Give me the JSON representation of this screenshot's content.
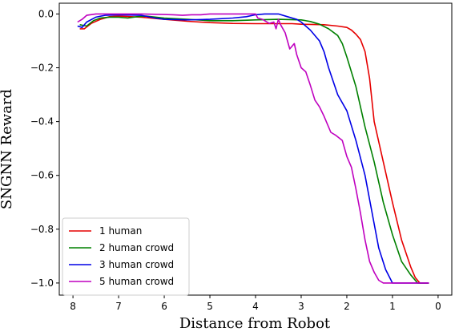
{
  "chart_data": {
    "type": "line",
    "title": "",
    "xlabel": "Distance from Robot",
    "ylabel": "SNGNN Reward",
    "xlim": [
      8.3,
      -0.3
    ],
    "ylim": [
      -1.045,
      0.04
    ],
    "x_inverted": true,
    "x_ticks": [
      8,
      7,
      6,
      5,
      4,
      3,
      2,
      1,
      0
    ],
    "y_ticks": [
      0.0,
      -0.2,
      -0.4,
      -0.6,
      -0.8,
      -1.0
    ],
    "x_tick_labels": [
      "8",
      "7",
      "6",
      "5",
      "4",
      "3",
      "2",
      "1",
      "0"
    ],
    "y_tick_labels": [
      "0.0",
      "−0.2",
      "−0.4",
      "−0.6",
      "−0.8",
      "−1.0"
    ],
    "grid": false,
    "legend_position": "lower-left",
    "series": [
      {
        "name": "1 human",
        "color": "#e60000",
        "points": [
          [
            7.85,
            -0.055
          ],
          [
            7.75,
            -0.055
          ],
          [
            7.6,
            -0.035
          ],
          [
            7.4,
            -0.02
          ],
          [
            7.2,
            -0.01
          ],
          [
            7.0,
            -0.008
          ],
          [
            6.5,
            -0.012
          ],
          [
            6.0,
            -0.02
          ],
          [
            5.5,
            -0.027
          ],
          [
            5.0,
            -0.032
          ],
          [
            4.5,
            -0.035
          ],
          [
            4.0,
            -0.036
          ],
          [
            3.5,
            -0.036
          ],
          [
            3.2,
            -0.036
          ],
          [
            3.0,
            -0.038
          ],
          [
            2.5,
            -0.04
          ],
          [
            2.2,
            -0.045
          ],
          [
            2.0,
            -0.05
          ],
          [
            1.9,
            -0.06
          ],
          [
            1.8,
            -0.075
          ],
          [
            1.7,
            -0.095
          ],
          [
            1.6,
            -0.14
          ],
          [
            1.5,
            -0.24
          ],
          [
            1.4,
            -0.4
          ],
          [
            1.2,
            -0.55
          ],
          [
            1.0,
            -0.7
          ],
          [
            0.8,
            -0.84
          ],
          [
            0.6,
            -0.94
          ],
          [
            0.5,
            -0.98
          ],
          [
            0.4,
            -1.0
          ],
          [
            0.2,
            -1.0
          ]
        ]
      },
      {
        "name": "2 human crowd",
        "color": "#008000",
        "points": [
          [
            7.85,
            -0.04
          ],
          [
            7.7,
            -0.045
          ],
          [
            7.55,
            -0.025
          ],
          [
            7.4,
            -0.015
          ],
          [
            7.2,
            -0.012
          ],
          [
            7.0,
            -0.012
          ],
          [
            6.8,
            -0.015
          ],
          [
            6.6,
            -0.01
          ],
          [
            6.4,
            -0.008
          ],
          [
            6.0,
            -0.015
          ],
          [
            5.5,
            -0.02
          ],
          [
            5.0,
            -0.025
          ],
          [
            4.5,
            -0.025
          ],
          [
            4.0,
            -0.022
          ],
          [
            3.5,
            -0.02
          ],
          [
            3.0,
            -0.022
          ],
          [
            2.8,
            -0.028
          ],
          [
            2.6,
            -0.038
          ],
          [
            2.4,
            -0.055
          ],
          [
            2.2,
            -0.08
          ],
          [
            2.1,
            -0.11
          ],
          [
            2.0,
            -0.16
          ],
          [
            1.8,
            -0.27
          ],
          [
            1.6,
            -0.42
          ],
          [
            1.4,
            -0.55
          ],
          [
            1.2,
            -0.7
          ],
          [
            1.0,
            -0.82
          ],
          [
            0.8,
            -0.92
          ],
          [
            0.6,
            -0.97
          ],
          [
            0.45,
            -1.0
          ],
          [
            0.2,
            -1.0
          ]
        ]
      },
      {
        "name": "3 human crowd",
        "color": "#0000e6",
        "points": [
          [
            7.9,
            -0.045
          ],
          [
            7.8,
            -0.05
          ],
          [
            7.7,
            -0.03
          ],
          [
            7.5,
            -0.012
          ],
          [
            7.3,
            -0.005
          ],
          [
            7.0,
            -0.003
          ],
          [
            6.5,
            -0.005
          ],
          [
            6.2,
            -0.015
          ],
          [
            6.0,
            -0.02
          ],
          [
            5.5,
            -0.022
          ],
          [
            5.0,
            -0.02
          ],
          [
            4.5,
            -0.015
          ],
          [
            4.2,
            -0.01
          ],
          [
            4.0,
            -0.003
          ],
          [
            3.8,
            0.0
          ],
          [
            3.5,
            0.0
          ],
          [
            3.3,
            -0.01
          ],
          [
            3.1,
            -0.02
          ],
          [
            3.0,
            -0.03
          ],
          [
            2.8,
            -0.06
          ],
          [
            2.6,
            -0.1
          ],
          [
            2.5,
            -0.14
          ],
          [
            2.4,
            -0.2
          ],
          [
            2.2,
            -0.3
          ],
          [
            2.0,
            -0.36
          ],
          [
            1.8,
            -0.47
          ],
          [
            1.6,
            -0.6
          ],
          [
            1.4,
            -0.78
          ],
          [
            1.3,
            -0.87
          ],
          [
            1.15,
            -0.95
          ],
          [
            1.0,
            -1.0
          ],
          [
            0.6,
            -1.0
          ],
          [
            0.2,
            -1.0
          ]
        ]
      },
      {
        "name": "5 human crowd",
        "color": "#bf00bf",
        "points": [
          [
            7.9,
            -0.03
          ],
          [
            7.8,
            -0.02
          ],
          [
            7.7,
            -0.005
          ],
          [
            7.5,
            0.0
          ],
          [
            7.0,
            0.0
          ],
          [
            6.5,
            0.0
          ],
          [
            6.0,
            -0.002
          ],
          [
            5.8,
            -0.003
          ],
          [
            5.6,
            -0.005
          ],
          [
            5.4,
            -0.003
          ],
          [
            5.2,
            -0.003
          ],
          [
            5.0,
            0.0
          ],
          [
            4.5,
            0.0
          ],
          [
            4.0,
            0.0
          ],
          [
            3.95,
            -0.015
          ],
          [
            3.85,
            -0.02
          ],
          [
            3.7,
            -0.035
          ],
          [
            3.6,
            -0.03
          ],
          [
            3.55,
            -0.055
          ],
          [
            3.5,
            -0.02
          ],
          [
            3.45,
            -0.04
          ],
          [
            3.35,
            -0.07
          ],
          [
            3.25,
            -0.13
          ],
          [
            3.15,
            -0.11
          ],
          [
            3.1,
            -0.15
          ],
          [
            3.0,
            -0.2
          ],
          [
            2.9,
            -0.215
          ],
          [
            2.8,
            -0.265
          ],
          [
            2.7,
            -0.32
          ],
          [
            2.6,
            -0.345
          ],
          [
            2.5,
            -0.38
          ],
          [
            2.35,
            -0.44
          ],
          [
            2.25,
            -0.45
          ],
          [
            2.1,
            -0.47
          ],
          [
            2.0,
            -0.53
          ],
          [
            1.9,
            -0.57
          ],
          [
            1.8,
            -0.65
          ],
          [
            1.7,
            -0.74
          ],
          [
            1.6,
            -0.84
          ],
          [
            1.5,
            -0.92
          ],
          [
            1.4,
            -0.96
          ],
          [
            1.3,
            -0.99
          ],
          [
            1.2,
            -1.0
          ],
          [
            0.8,
            -1.0
          ],
          [
            0.2,
            -1.0
          ]
        ]
      }
    ]
  }
}
